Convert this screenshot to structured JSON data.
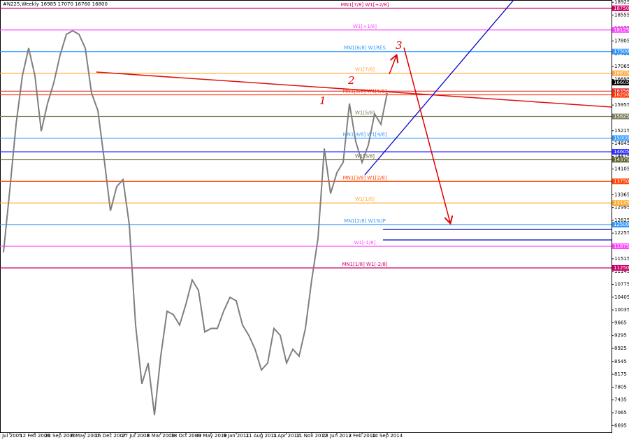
{
  "chart_data": {
    "type": "line",
    "title": "#N225,Weekly  16985 17070 16760 16800",
    "categories": [
      null,
      "3 Jul 2005",
      null,
      null,
      null,
      "12 Feb 2006",
      null,
      null,
      null,
      "24 Sep 2006",
      null,
      null,
      null,
      "6 May 2007",
      null,
      null,
      null,
      "16 Dec 2007",
      null,
      null,
      null,
      "27 Jul 2008",
      null,
      null,
      null,
      "8 Mar 2009",
      null,
      null,
      null,
      "18 Oct 2009",
      null,
      null,
      null,
      "30 May 2010",
      null,
      null,
      null,
      "9 Jan 2011",
      null,
      null,
      null,
      "21 Aug 2011",
      null,
      null,
      null,
      "1 Apr 2012",
      null,
      null,
      null,
      "11 Nov 2012",
      null,
      null,
      null,
      "23 Jun 2013",
      null,
      null,
      null,
      "2 Feb 2014",
      null,
      null,
      null,
      "14 Sep 2014"
    ],
    "series": [
      {
        "name": "#N225",
        "color": "#7f7f7f",
        "values": [
          11700,
          13500,
          15400,
          16800,
          17600,
          16800,
          15200,
          16000,
          16600,
          17400,
          18000,
          18100,
          18000,
          17600,
          16300,
          15800,
          14400,
          12900,
          13600,
          13800,
          12500,
          9600,
          7900,
          8500,
          7000,
          8700,
          10000,
          9900,
          9600,
          10200,
          10900,
          10600,
          9400,
          9500,
          9500,
          10000,
          10400,
          10300,
          9600,
          9300,
          8900,
          8300,
          8500,
          9500,
          9300,
          8500,
          8900,
          8700,
          9500,
          10900,
          12100,
          14700,
          13400,
          14000,
          14300,
          16000,
          14900,
          14300,
          14800,
          15700,
          15400,
          16300
        ]
      }
    ],
    "ylim": [
      6500,
      18990
    ],
    "yticks": [
      18925,
      18555,
      18175,
      17805,
      17435,
      17065,
      16695,
      16325,
      15955,
      15585,
      15215,
      14845,
      14475,
      14105,
      13735,
      13365,
      12995,
      12625,
      12255,
      11885,
      11515,
      11145,
      10775,
      10405,
      10035,
      9665,
      9295,
      8925,
      8545,
      8175,
      7805,
      7435,
      7065,
      6695
    ],
    "grid": false,
    "levels": [
      {
        "value": 18750,
        "color": "#cc0066",
        "text": "MN1[7/8] W1[+2/8]"
      },
      {
        "value": 18125,
        "color": "#ff44ff",
        "text": "W1[+1/8]"
      },
      {
        "value": 17500,
        "color": "#3399ff",
        "text": "MN1[6/8] W1RES"
      },
      {
        "value": 16875,
        "color": "#ffaa44",
        "text": "W1[7/8]"
      },
      {
        "value": 16356,
        "color": "#e03030"
      },
      {
        "value": 16250,
        "color": "#ff3300",
        "text": "MN1[5/8] W1[6/8]"
      },
      {
        "value": 15625,
        "color": "#808060",
        "text": "W1[5/8]"
      },
      {
        "value": 15000,
        "color": "#3399ff",
        "text": "MN1[4/8] W1[4/8]"
      },
      {
        "value": 14605,
        "color": "#3030ff"
      },
      {
        "value": 14375,
        "color": "#606030",
        "text": "W1[3/8]"
      },
      {
        "value": 13750,
        "color": "#ff4400",
        "text": "MN1[3/8] W1[2/8]"
      },
      {
        "value": 13125,
        "color": "#ffaa33",
        "text": "W1[1/8]"
      },
      {
        "value": 12500,
        "color": "#3399ff",
        "text": "MN1[2/8] W1SUP"
      },
      {
        "value": 11875,
        "color": "#ff44ff",
        "text": "W1[-1/8]"
      },
      {
        "value": 11250,
        "color": "#cc0066",
        "text": "MN1[1/8] W1[-2/8]"
      }
    ],
    "current_price": 16605,
    "annotations": [
      "1",
      "2",
      "3"
    ]
  }
}
